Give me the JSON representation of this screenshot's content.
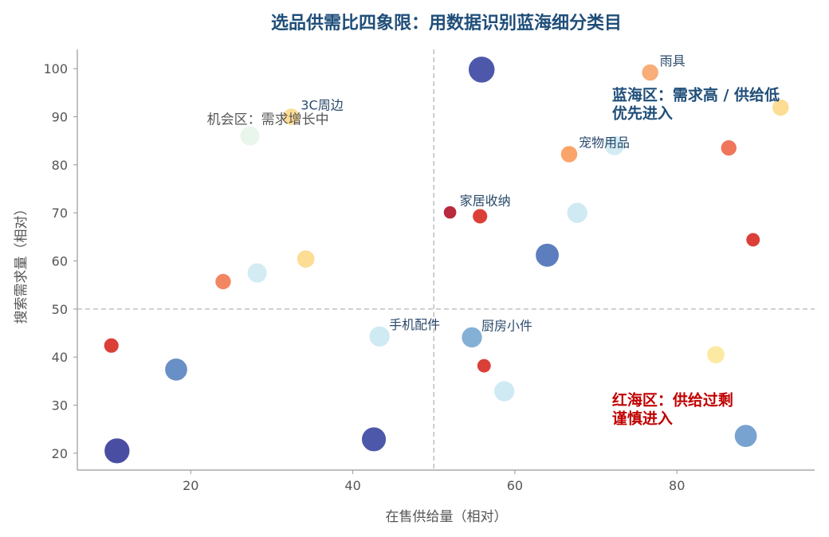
{
  "chart_data": {
    "type": "scatter",
    "title": "选品供需比四象限：用数据识别蓝海细分类目",
    "xlabel": "在售供给量（相对）",
    "ylabel": "搜索需求量（相对）",
    "xlim": [
      6,
      97
    ],
    "ylim": [
      16.5,
      104
    ],
    "xticks": [
      20,
      40,
      60,
      80
    ],
    "yticks": [
      20,
      30,
      40,
      50,
      60,
      70,
      80,
      90,
      100
    ],
    "grid": false,
    "reference_lines": {
      "x": 50,
      "y": 50
    },
    "points": [
      {
        "x": 55.9,
        "y": 99.8,
        "size": 1.0,
        "color": "#3f4aa3",
        "label": ""
      },
      {
        "x": 76.7,
        "y": 99.2,
        "size": 0.5,
        "color": "#f9a66c",
        "label": "雨具"
      },
      {
        "x": 92.8,
        "y": 91.9,
        "size": 0.5,
        "color": "#fdd98b",
        "label": ""
      },
      {
        "x": 32.4,
        "y": 90.0,
        "size": 0.5,
        "color": "#fdd98b",
        "label": "3C周边"
      },
      {
        "x": 27.3,
        "y": 86.0,
        "size": 0.65,
        "color": "#e7f5ea",
        "label": ""
      },
      {
        "x": 72.3,
        "y": 84.0,
        "size": 0.65,
        "color": "#cfeaf2",
        "label": ""
      },
      {
        "x": 66.7,
        "y": 82.2,
        "size": 0.5,
        "color": "#fb9c5c",
        "label": "宠物用品"
      },
      {
        "x": 86.4,
        "y": 83.5,
        "size": 0.45,
        "color": "#ee6a4c",
        "label": ""
      },
      {
        "x": 52.0,
        "y": 70.1,
        "size": 0.3,
        "color": "#b2182b",
        "label": "家居收纳"
      },
      {
        "x": 55.7,
        "y": 69.3,
        "size": 0.4,
        "color": "#d73027",
        "label": ""
      },
      {
        "x": 67.7,
        "y": 70.0,
        "size": 0.7,
        "color": "#cbe8f2",
        "label": ""
      },
      {
        "x": 89.4,
        "y": 64.4,
        "size": 0.35,
        "color": "#d73027",
        "label": ""
      },
      {
        "x": 64.0,
        "y": 61.2,
        "size": 0.85,
        "color": "#4f73b8",
        "label": ""
      },
      {
        "x": 34.2,
        "y": 60.4,
        "size": 0.55,
        "color": "#fdd98b",
        "label": ""
      },
      {
        "x": 28.2,
        "y": 57.5,
        "size": 0.65,
        "color": "#cfeaf2",
        "label": ""
      },
      {
        "x": 24.0,
        "y": 55.7,
        "size": 0.45,
        "color": "#f17c56",
        "label": ""
      },
      {
        "x": 43.3,
        "y": 44.3,
        "size": 0.7,
        "color": "#cbe8f2",
        "label": "手机配件"
      },
      {
        "x": 54.7,
        "y": 44.1,
        "size": 0.7,
        "color": "#7ba9d3",
        "label": "厨房小件"
      },
      {
        "x": 10.2,
        "y": 42.4,
        "size": 0.4,
        "color": "#d73027",
        "label": ""
      },
      {
        "x": 84.8,
        "y": 40.5,
        "size": 0.55,
        "color": "#fde89a",
        "label": ""
      },
      {
        "x": 18.2,
        "y": 37.4,
        "size": 0.8,
        "color": "#5b87c1",
        "label": ""
      },
      {
        "x": 56.2,
        "y": 38.2,
        "size": 0.35,
        "color": "#d73027",
        "label": ""
      },
      {
        "x": 58.7,
        "y": 32.9,
        "size": 0.7,
        "color": "#cbe8f2",
        "label": ""
      },
      {
        "x": 88.5,
        "y": 23.6,
        "size": 0.8,
        "color": "#6d9bcc",
        "label": ""
      },
      {
        "x": 42.6,
        "y": 22.9,
        "size": 0.9,
        "color": "#3f4aa3",
        "label": ""
      },
      {
        "x": 10.9,
        "y": 20.5,
        "size": 0.95,
        "color": "#3a3f9a",
        "label": ""
      }
    ],
    "annotations": [
      {
        "x": 72,
        "y": 93.5,
        "lines": [
          "蓝海区：需求高 / 供给低",
          "优先进入"
        ],
        "style": "quad-blue"
      },
      {
        "x": 72,
        "y": 30.0,
        "lines": [
          "红海区：供给过剩",
          "谨慎进入"
        ],
        "style": "quad-red"
      },
      {
        "x": 22,
        "y": 88.5,
        "lines": [
          "机会区：需求增长中"
        ],
        "style": "quad-gray"
      }
    ]
  }
}
